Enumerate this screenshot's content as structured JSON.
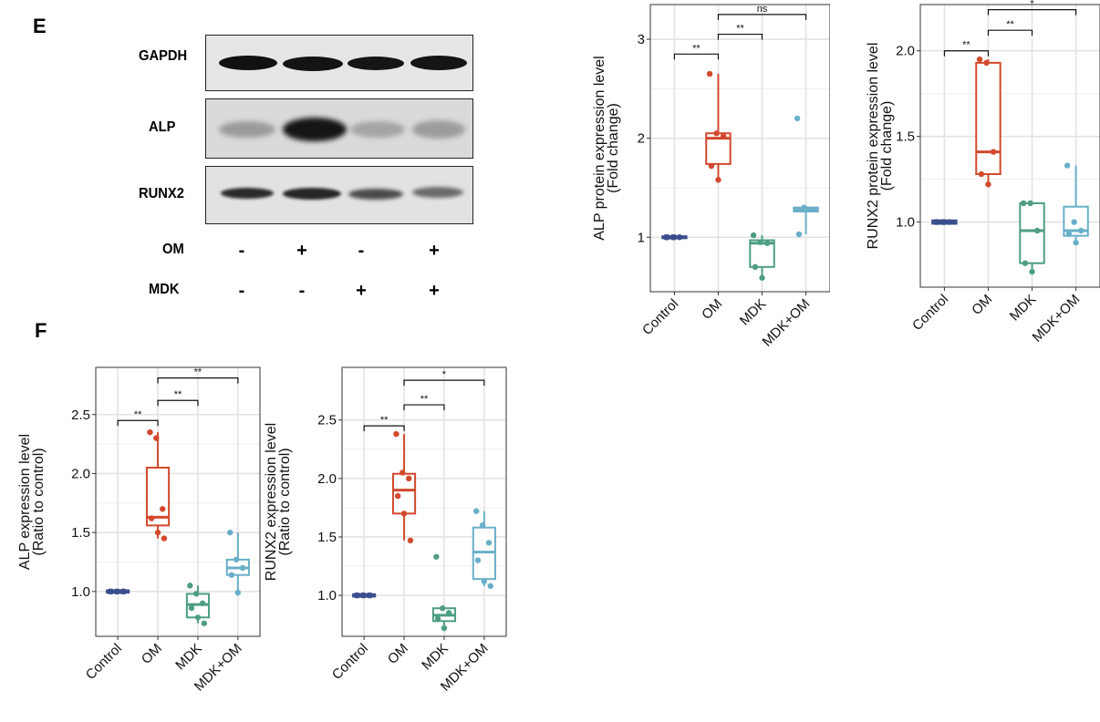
{
  "panels": {
    "E": "E",
    "F": "F"
  },
  "blot": {
    "rows": [
      "GAPDH",
      "ALP",
      "RUNX2"
    ],
    "conditions": [
      {
        "label": "OM",
        "signs": [
          "-",
          "+",
          "-",
          "+"
        ]
      },
      {
        "label": "MDK",
        "signs": [
          "-",
          "-",
          "+",
          "+"
        ]
      }
    ]
  },
  "colors": {
    "Control": "#3b4e8c",
    "OM": "#d2492c",
    "MDK": "#4e9e80",
    "MDK+OM": "#69afc8"
  },
  "chart_data": [
    {
      "type": "box",
      "ylabel": [
        "ALP protein expression level",
        "(Fold change)"
      ],
      "categories": [
        "Control",
        "OM",
        "MDK",
        "MDK+OM"
      ],
      "ylim": [
        0.45,
        3.35
      ],
      "yticks": [
        1,
        2,
        3
      ],
      "yticklabels": [
        "1",
        "2",
        "3"
      ],
      "boxes": [
        {
          "q1": 0.99,
          "median": 1.0,
          "q3": 1.01,
          "low": 0.99,
          "high": 1.01,
          "points": [
            1.0,
            1.0,
            1.0,
            1.0,
            1.0
          ]
        },
        {
          "q1": 1.74,
          "median": 2.0,
          "q3": 2.05,
          "low": 1.58,
          "high": 2.65,
          "points": [
            2.65,
            2.05,
            2.02,
            1.72,
            1.58
          ]
        },
        {
          "q1": 0.7,
          "median": 0.94,
          "q3": 0.97,
          "low": 0.59,
          "high": 1.02,
          "points": [
            1.02,
            0.95,
            0.94,
            0.7,
            0.59
          ]
        },
        {
          "q1": 1.26,
          "median": 1.28,
          "q3": 1.3,
          "low": 1.03,
          "high": 1.3,
          "points": [
            2.2,
            1.3,
            1.28,
            1.03
          ]
        }
      ],
      "significance": [
        {
          "from": 0,
          "to": 1,
          "y": 2.85,
          "label": "**"
        },
        {
          "from": 1,
          "to": 2,
          "y": 3.05,
          "label": "**"
        },
        {
          "from": 1,
          "to": 3,
          "y": 3.25,
          "label": "ns"
        }
      ]
    },
    {
      "type": "box",
      "ylabel": [
        "RUNX2 protein expression level",
        "(Fold change)"
      ],
      "categories": [
        "Control",
        "OM",
        "MDK",
        "MDK+OM"
      ],
      "ylim": [
        0.62,
        2.27
      ],
      "yticks": [
        1.0,
        1.5,
        2.0
      ],
      "yticklabels": [
        "1.0",
        "1.5",
        "2.0"
      ],
      "boxes": [
        {
          "q1": 0.99,
          "median": 1.0,
          "q3": 1.01,
          "low": 0.99,
          "high": 1.01,
          "points": [
            1.0,
            1.0,
            1.0,
            1.0,
            1.0
          ]
        },
        {
          "q1": 1.28,
          "median": 1.41,
          "q3": 1.93,
          "low": 1.22,
          "high": 1.95,
          "points": [
            1.95,
            1.93,
            1.41,
            1.28,
            1.22
          ]
        },
        {
          "q1": 0.76,
          "median": 0.95,
          "q3": 1.11,
          "low": 0.71,
          "high": 1.11,
          "points": [
            1.11,
            1.11,
            0.95,
            0.76,
            0.71
          ]
        },
        {
          "q1": 0.92,
          "median": 0.95,
          "q3": 1.09,
          "low": 0.88,
          "high": 1.33,
          "points": [
            1.33,
            1.0,
            0.95,
            0.93,
            0.88
          ]
        }
      ],
      "significance": [
        {
          "from": 0,
          "to": 1,
          "y": 2.0,
          "label": "**"
        },
        {
          "from": 1,
          "to": 2,
          "y": 2.12,
          "label": "**"
        },
        {
          "from": 1,
          "to": 3,
          "y": 2.24,
          "label": "*"
        }
      ]
    },
    {
      "type": "box",
      "ylabel": [
        "ALP expression level",
        "(Ratio to control)"
      ],
      "categories": [
        "Control",
        "OM",
        "MDK",
        "MDK+OM"
      ],
      "ylim": [
        0.62,
        2.9
      ],
      "yticks": [
        1.0,
        1.5,
        2.0,
        2.5
      ],
      "yticklabels": [
        "1.0",
        "1.5",
        "2.0",
        "2.5"
      ],
      "boxes": [
        {
          "q1": 0.99,
          "median": 1.0,
          "q3": 1.01,
          "low": 0.99,
          "high": 1.01,
          "points": [
            1.0,
            1.0,
            1.0,
            1.0,
            1.0,
            1.0
          ]
        },
        {
          "q1": 1.56,
          "median": 1.63,
          "q3": 2.05,
          "low": 1.45,
          "high": 2.35,
          "points": [
            2.35,
            2.3,
            1.7,
            1.62,
            1.5,
            1.45
          ]
        },
        {
          "q1": 0.78,
          "median": 0.89,
          "q3": 0.98,
          "low": 0.73,
          "high": 1.05,
          "points": [
            1.05,
            0.98,
            0.9,
            0.86,
            0.78,
            0.73
          ]
        },
        {
          "q1": 1.14,
          "median": 1.2,
          "q3": 1.27,
          "low": 0.99,
          "high": 1.5,
          "points": [
            1.5,
            1.27,
            1.2,
            1.14,
            0.99
          ]
        }
      ],
      "significance": [
        {
          "from": 0,
          "to": 1,
          "y": 2.45,
          "label": "**"
        },
        {
          "from": 1,
          "to": 2,
          "y": 2.62,
          "label": "**"
        },
        {
          "from": 1,
          "to": 3,
          "y": 2.81,
          "label": "**"
        }
      ]
    },
    {
      "type": "box",
      "ylabel": [
        "RUNX2 expression level",
        "(Ratio to control)"
      ],
      "categories": [
        "Control",
        "OM",
        "MDK",
        "MDK+OM"
      ],
      "ylim": [
        0.65,
        2.95
      ],
      "yticks": [
        1.0,
        1.5,
        2.0,
        2.5
      ],
      "yticklabels": [
        "1.0",
        "1.5",
        "2.0",
        "2.5"
      ],
      "boxes": [
        {
          "q1": 0.99,
          "median": 1.0,
          "q3": 1.01,
          "low": 0.99,
          "high": 1.01,
          "points": [
            1.0,
            1.0,
            1.0,
            1.0,
            1.0,
            1.0
          ]
        },
        {
          "q1": 1.7,
          "median": 1.9,
          "q3": 2.04,
          "low": 1.47,
          "high": 2.38,
          "points": [
            2.38,
            2.05,
            2.0,
            1.85,
            1.7,
            1.47
          ]
        },
        {
          "q1": 0.78,
          "median": 0.83,
          "q3": 0.89,
          "low": 0.72,
          "high": 0.89,
          "points": [
            1.33,
            0.89,
            0.85,
            0.8,
            0.72
          ]
        },
        {
          "q1": 1.14,
          "median": 1.37,
          "q3": 1.58,
          "low": 1.08,
          "high": 1.72,
          "points": [
            1.72,
            1.6,
            1.45,
            1.3,
            1.12,
            1.08
          ]
        }
      ],
      "significance": [
        {
          "from": 0,
          "to": 1,
          "y": 2.45,
          "label": "**"
        },
        {
          "from": 1,
          "to": 2,
          "y": 2.63,
          "label": "**"
        },
        {
          "from": 1,
          "to": 3,
          "y": 2.84,
          "label": "*"
        }
      ]
    }
  ]
}
